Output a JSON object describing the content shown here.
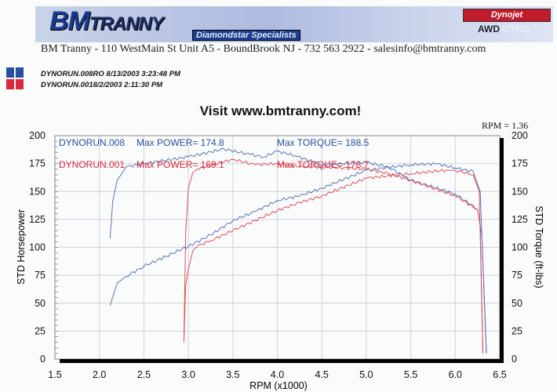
{
  "header": {
    "logo_text": "BM",
    "logo_text2": "TRANNY",
    "tagline": "Diamondstar Specialists",
    "dynojet": "Dynojet",
    "awd": "AWD",
    "dyno": "DYNO",
    "address": "BM Tranny - 110 WestMain St Unit A5 - BoundBrook NJ - 732 563 2922 - salesinfo@bmtranny.com"
  },
  "runs": [
    {
      "label": "DYNORUN.008RO  8/13/2003 3:23:48 PM",
      "color": "#2a4fa0"
    },
    {
      "label": "DYNORUN.0018/2/2003 2:11:30 PM",
      "color": "#d8283c"
    }
  ],
  "rpm_readout": "RPM = 1.36",
  "chart_data": {
    "type": "line",
    "title": "Visit www.bmtranny.com!",
    "xlabel": "RPM (x1000)",
    "ylabel": "STD Horsepower",
    "y2label": "STD Torque (ft-lbs)",
    "xlim": [
      1.5,
      6.5
    ],
    "ylim": [
      0,
      200
    ],
    "y2lim": [
      0,
      200
    ],
    "xticks": [
      "1.5",
      "2.0",
      "2.5",
      "3.0",
      "3.5",
      "4.0",
      "4.5",
      "5.0",
      "5.5",
      "6.0",
      "6.5"
    ],
    "yticks": [
      "0",
      "25",
      "50",
      "75",
      "100",
      "125",
      "150",
      "175",
      "200"
    ],
    "grid": true,
    "legend": [
      {
        "run": "DYNORUN.008",
        "power": "Max POWER= 174.8",
        "torque": "Max TORQUE= 188.5",
        "color": "#2a4fa0"
      },
      {
        "run": "DYNORUN.001",
        "power": "Max POWER= 169.1",
        "torque": "Max TORQUE= 178.7",
        "color": "#d8283c"
      }
    ],
    "series": [
      {
        "run": "DYNORUN.008",
        "kind": "torque",
        "color": "#5a73b8",
        "x": [
          2.12,
          2.15,
          2.2,
          2.3,
          2.5,
          3.0,
          3.4,
          3.7,
          3.85,
          4.0,
          4.2,
          4.5,
          5.0,
          5.25,
          5.5,
          6.0,
          6.25,
          6.3,
          6.35
        ],
        "y": [
          108,
          141,
          160,
          172,
          175,
          181,
          188,
          183,
          181,
          186,
          182,
          174,
          176,
          172,
          160,
          148,
          134,
          110,
          5
        ]
      },
      {
        "run": "DYNORUN.008",
        "kind": "power",
        "color": "#5a73b8",
        "x": [
          2.12,
          2.2,
          2.3,
          2.5,
          2.75,
          3.0,
          3.25,
          3.5,
          3.75,
          4.0,
          4.25,
          4.5,
          5.0,
          5.5,
          5.8,
          6.0,
          6.2,
          6.28,
          6.35
        ],
        "y": [
          48,
          68,
          74,
          83,
          92,
          101,
          111,
          124,
          132,
          142,
          146,
          153,
          169,
          174,
          174.8,
          171,
          168,
          150,
          5
        ]
      },
      {
        "run": "DYNORUN.001",
        "kind": "torque",
        "color": "#e0505f",
        "x": [
          2.95,
          2.97,
          3.0,
          3.05,
          3.1,
          3.5,
          3.75,
          4.0,
          4.25,
          4.5,
          5.0,
          5.25,
          5.5,
          6.0,
          6.25,
          6.28,
          6.31
        ],
        "y": [
          17,
          113,
          153,
          167,
          170,
          178.7,
          174,
          175,
          172,
          172,
          170,
          166,
          160,
          146,
          134,
          120,
          5
        ]
      },
      {
        "run": "DYNORUN.001",
        "kind": "power",
        "color": "#e0505f",
        "x": [
          2.95,
          2.97,
          3.0,
          3.05,
          3.1,
          3.25,
          3.5,
          3.75,
          4.0,
          4.25,
          4.5,
          5.0,
          5.5,
          5.9,
          6.0,
          6.2,
          6.27,
          6.31
        ],
        "y": [
          15,
          66,
          80,
          97,
          101,
          106,
          115,
          124,
          133,
          140,
          146,
          162,
          166,
          169.1,
          169,
          165,
          150,
          5
        ]
      }
    ]
  }
}
